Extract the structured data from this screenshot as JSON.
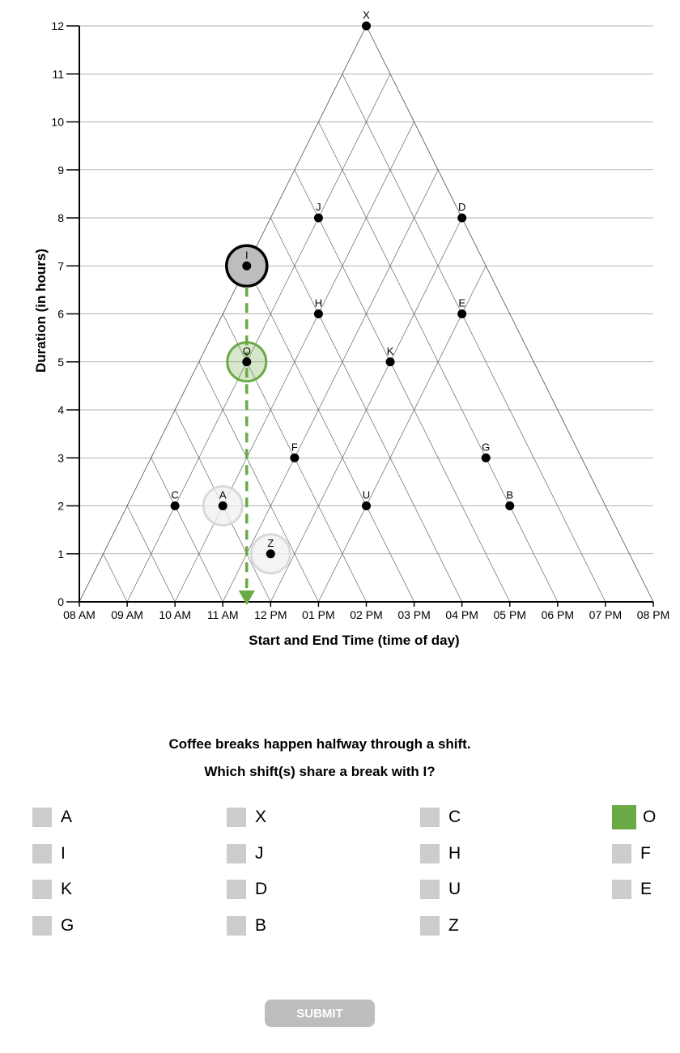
{
  "chart_data": {
    "type": "scatter",
    "xlabel": "Start and End Time (time of day)",
    "ylabel": "Duration (in hours)",
    "xlim": [
      8,
      20
    ],
    "ylim": [
      0,
      12
    ],
    "x_ticks": [
      "08 AM",
      "09 AM",
      "10 AM",
      "11 AM",
      "12 PM",
      "01 PM",
      "02 PM",
      "03 PM",
      "04 PM",
      "05 PM",
      "06 PM",
      "07 PM",
      "08 PM"
    ],
    "y_ticks": [
      "0",
      "1",
      "2",
      "3",
      "4",
      "5",
      "6",
      "7",
      "8",
      "9",
      "10",
      "11",
      "12"
    ],
    "points": [
      {
        "label": "X",
        "midpoint": 14,
        "duration": 12
      },
      {
        "label": "J",
        "midpoint": 13,
        "duration": 8
      },
      {
        "label": "D",
        "midpoint": 16,
        "duration": 8
      },
      {
        "label": "I",
        "midpoint": 11.5,
        "duration": 7
      },
      {
        "label": "H",
        "midpoint": 13,
        "duration": 6
      },
      {
        "label": "E",
        "midpoint": 16,
        "duration": 6
      },
      {
        "label": "O",
        "midpoint": 11.5,
        "duration": 5
      },
      {
        "label": "K",
        "midpoint": 14.5,
        "duration": 5
      },
      {
        "label": "F",
        "midpoint": 12.5,
        "duration": 3
      },
      {
        "label": "G",
        "midpoint": 16.5,
        "duration": 3
      },
      {
        "label": "C",
        "midpoint": 10,
        "duration": 2
      },
      {
        "label": "A",
        "midpoint": 11,
        "duration": 2
      },
      {
        "label": "U",
        "midpoint": 14,
        "duration": 2
      },
      {
        "label": "B",
        "midpoint": 17,
        "duration": 2
      },
      {
        "label": "Z",
        "midpoint": 12,
        "duration": 1
      }
    ],
    "highlight": {
      "reference": "I",
      "selected": [
        "O"
      ],
      "faded": [
        "A",
        "Z"
      ],
      "drop_line_x": 11.5
    },
    "grid": true,
    "colors": {
      "point": "#000000",
      "reference_ring": "#000000",
      "reference_fill": "#bdbdbd",
      "selected": "#6aaa46",
      "faded_ring": "#d9d9d9"
    }
  },
  "question": {
    "line1": "Coffee breaks happen halfway through a shift.",
    "line2": "Which shift(s) share a break with I?"
  },
  "options": [
    {
      "label": "A",
      "checked": false
    },
    {
      "label": "X",
      "checked": false
    },
    {
      "label": "C",
      "checked": false
    },
    {
      "label": "O",
      "checked": true
    },
    {
      "label": "I",
      "checked": false
    },
    {
      "label": "J",
      "checked": false
    },
    {
      "label": "H",
      "checked": false
    },
    {
      "label": "F",
      "checked": false
    },
    {
      "label": "K",
      "checked": false
    },
    {
      "label": "D",
      "checked": false
    },
    {
      "label": "U",
      "checked": false
    },
    {
      "label": "E",
      "checked": false
    },
    {
      "label": "G",
      "checked": false
    },
    {
      "label": "B",
      "checked": false
    },
    {
      "label": "Z",
      "checked": false
    }
  ],
  "submit_label": "SUBMIT"
}
